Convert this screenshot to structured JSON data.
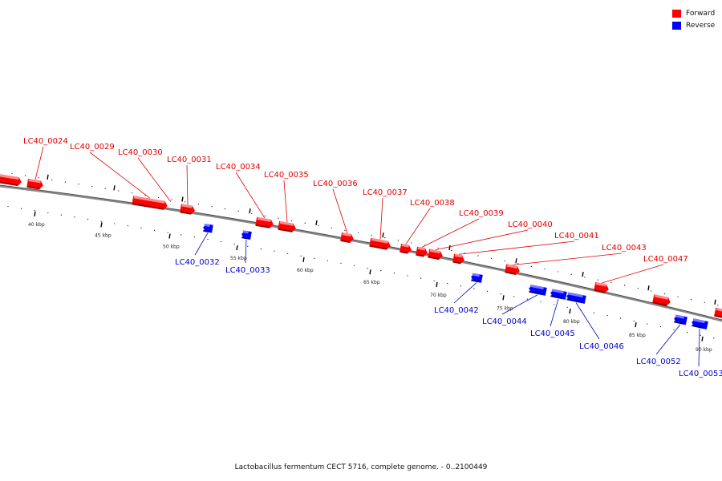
{
  "legend": {
    "forward_label": "Forward",
    "forward_color": "#ff0000",
    "reverse_label": "Reverse",
    "reverse_color": "#0000ff"
  },
  "footer": "Lactobacillus fermentum CECT 5716, complete genome. - 0..2100449",
  "axis_ticks": [
    "40 kbp",
    "45 kbp",
    "50 kbp",
    "55 kbp",
    "60 kbp",
    "65 kbp",
    "70 kbp",
    "75 kbp",
    "80 kbp",
    "85 kbp",
    "90 kbp"
  ],
  "genes": [
    {
      "name": "",
      "strand": "forward"
    },
    {
      "name": "LC40_0024",
      "strand": "forward"
    },
    {
      "name": "LC40_0029",
      "strand": "forward"
    },
    {
      "name": "LC40_0030",
      "strand": "forward"
    },
    {
      "name": "LC40_0031",
      "strand": "forward"
    },
    {
      "name": "LC40_0034",
      "strand": "forward"
    },
    {
      "name": "LC40_0035",
      "strand": "forward"
    },
    {
      "name": "LC40_0036",
      "strand": "forward"
    },
    {
      "name": "LC40_0037",
      "strand": "forward"
    },
    {
      "name": "LC40_0038",
      "strand": "forward"
    },
    {
      "name": "LC40_0039",
      "strand": "forward"
    },
    {
      "name": "LC40_0040",
      "strand": "forward"
    },
    {
      "name": "LC40_0041",
      "strand": "forward"
    },
    {
      "name": "LC40_0043",
      "strand": "forward"
    },
    {
      "name": "LC40_0047",
      "strand": "forward"
    },
    {
      "name": "",
      "strand": "forward"
    },
    {
      "name": "",
      "strand": "forward"
    },
    {
      "name": "LC40_0032",
      "strand": "reverse"
    },
    {
      "name": "LC40_0033",
      "strand": "reverse"
    },
    {
      "name": "LC40_0042",
      "strand": "reverse"
    },
    {
      "name": "LC40_0044",
      "strand": "reverse"
    },
    {
      "name": "LC40_0045",
      "strand": "reverse"
    },
    {
      "name": "LC40_0046",
      "strand": "reverse"
    },
    {
      "name": "LC40_0052",
      "strand": "reverse"
    },
    {
      "name": "LC40_0053",
      "strand": "reverse"
    }
  ]
}
